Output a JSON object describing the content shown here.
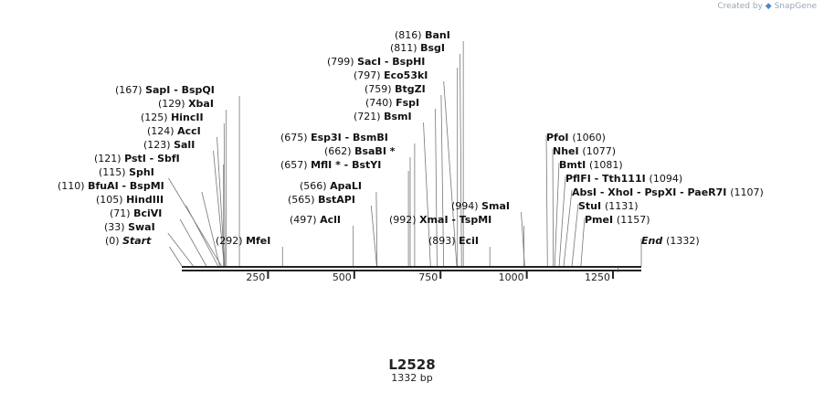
{
  "credit": {
    "prefix": "Created by",
    "brand": "SnapGene"
  },
  "sequence": {
    "name": "L2528",
    "length_label": "1332 bp",
    "length": 1332
  },
  "axis": {
    "ticks": [
      250,
      500,
      750,
      1000,
      1250
    ]
  },
  "sites": [
    {
      "pos": "(0)",
      "names": [
        "Start"
      ],
      "italic": true,
      "bp": 0
    },
    {
      "pos": "(33)",
      "names": [
        "SwaI"
      ],
      "bp": 33
    },
    {
      "pos": "(71)",
      "names": [
        "BciVI"
      ],
      "bp": 71
    },
    {
      "pos": "(105)",
      "names": [
        "HindIII"
      ],
      "bp": 105
    },
    {
      "pos": "(110)",
      "names": [
        "BfuAI",
        "BspMI"
      ],
      "bp": 110
    },
    {
      "pos": "(115)",
      "names": [
        "SphI"
      ],
      "bp": 115
    },
    {
      "pos": "(121)",
      "names": [
        "PstI",
        "SbfI"
      ],
      "bp": 121
    },
    {
      "pos": "(123)",
      "names": [
        "SalI"
      ],
      "bp": 123
    },
    {
      "pos": "(124)",
      "names": [
        "AccI"
      ],
      "bp": 124
    },
    {
      "pos": "(125)",
      "names": [
        "HincII"
      ],
      "bp": 125
    },
    {
      "pos": "(129)",
      "names": [
        "XbaI"
      ],
      "bp": 129
    },
    {
      "pos": "(167)",
      "names": [
        "SapI",
        "BspQI"
      ],
      "bp": 167
    },
    {
      "pos": "(292)",
      "names": [
        "MfeI"
      ],
      "bp": 292
    },
    {
      "pos": "(497)",
      "names": [
        "AclI"
      ],
      "bp": 497
    },
    {
      "pos": "(565)",
      "names": [
        "BstAPI"
      ],
      "bp": 565
    },
    {
      "pos": "(566)",
      "names": [
        "ApaLI"
      ],
      "bp": 566
    },
    {
      "pos": "(657)",
      "names": [
        "MflI *",
        "BstYI"
      ],
      "bp": 657
    },
    {
      "pos": "(662)",
      "names": [
        "BsaBI *"
      ],
      "bp": 662
    },
    {
      "pos": "(675)",
      "names": [
        "Esp3I",
        "BsmBI"
      ],
      "bp": 675
    },
    {
      "pos": "(721)",
      "names": [
        "BsmI"
      ],
      "bp": 721
    },
    {
      "pos": "(740)",
      "names": [
        "FspI"
      ],
      "bp": 740
    },
    {
      "pos": "(759)",
      "names": [
        "BtgZI"
      ],
      "bp": 759
    },
    {
      "pos": "(797)",
      "names": [
        "Eco53kI"
      ],
      "bp": 797
    },
    {
      "pos": "(799)",
      "names": [
        "SacI",
        "BspHI"
      ],
      "bp": 799
    },
    {
      "pos": "(811)",
      "names": [
        "BsgI"
      ],
      "bp": 811
    },
    {
      "pos": "(816)",
      "names": [
        "BanI"
      ],
      "bp": 816
    },
    {
      "pos": "(893)",
      "names": [
        "EciI"
      ],
      "bp": 893
    },
    {
      "pos": "(992)",
      "names": [
        "XmaI",
        "TspMI"
      ],
      "bp": 992
    },
    {
      "pos": "(994)",
      "names": [
        "SmaI"
      ],
      "bp": 994
    },
    {
      "pos": "(1060)",
      "names": [
        "PfoI"
      ],
      "bp": 1060
    },
    {
      "pos": "(1077)",
      "names": [
        "NheI"
      ],
      "bp": 1077
    },
    {
      "pos": "(1081)",
      "names": [
        "BmtI"
      ],
      "bp": 1081
    },
    {
      "pos": "(1094)",
      "names": [
        "PflFI",
        "Tth111I"
      ],
      "bp": 1094
    },
    {
      "pos": "(1107)",
      "names": [
        "AbsI",
        "XhoI",
        "PspXI",
        "PaeR7I"
      ],
      "bp": 1107
    },
    {
      "pos": "(1131)",
      "names": [
        "StuI"
      ],
      "bp": 1131
    },
    {
      "pos": "(1157)",
      "names": [
        "PmeI"
      ],
      "bp": 1157
    },
    {
      "pos": "(1332)",
      "names": [
        "End"
      ],
      "italic": true,
      "bp": 1332
    }
  ]
}
